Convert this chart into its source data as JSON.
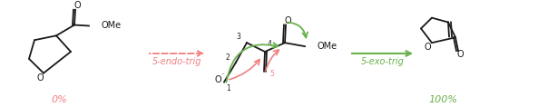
{
  "bg_color": "#ffffff",
  "arrow_color_red": "#f08080",
  "arrow_color_green": "#6ab04c",
  "text_color_red": "#f08080",
  "text_color_green": "#6ab04c",
  "text_color_black": "#1a1a1a",
  "label_left": "5-endo-trig",
  "label_right": "5-exo-trig",
  "pct_left": "0%",
  "pct_right": "100%",
  "figsize": [
    5.93,
    1.18
  ],
  "dpi": 100
}
